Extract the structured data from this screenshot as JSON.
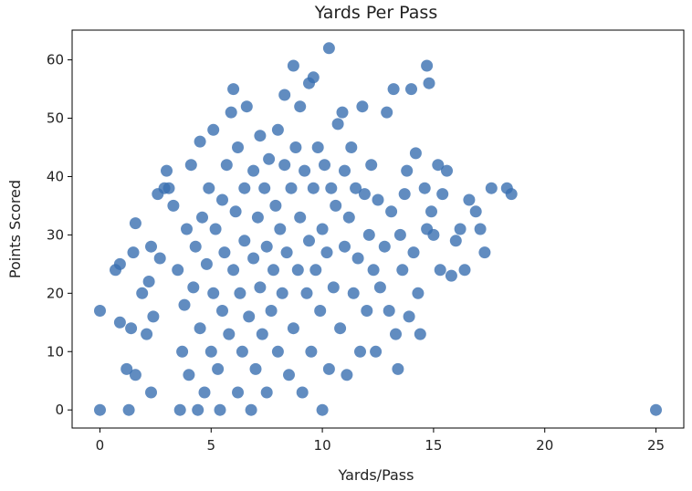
{
  "chart_data": {
    "type": "scatter",
    "title": "Yards Per Pass",
    "xlabel": "Yards/Pass",
    "ylabel": "Points Scored",
    "xlim": [
      -1.25,
      26.25
    ],
    "ylim": [
      -3.1,
      65.1
    ],
    "xticks": [
      0,
      5,
      10,
      15,
      20,
      25
    ],
    "yticks": [
      0,
      10,
      20,
      30,
      40,
      50,
      60
    ],
    "grid": false,
    "marker_color": "#3a6fb0",
    "marker_opacity": 0.8,
    "series": [
      {
        "points": [
          [
            0,
            0
          ],
          [
            0,
            17
          ],
          [
            0.7,
            24
          ],
          [
            0.9,
            25
          ],
          [
            0.9,
            15
          ],
          [
            1.2,
            7
          ],
          [
            1.3,
            0
          ],
          [
            1.4,
            14
          ],
          [
            1.5,
            27
          ],
          [
            1.6,
            32
          ],
          [
            1.6,
            6
          ],
          [
            1.9,
            20
          ],
          [
            2.1,
            13
          ],
          [
            2.2,
            22
          ],
          [
            2.3,
            28
          ],
          [
            2.3,
            3
          ],
          [
            2.4,
            16
          ],
          [
            2.6,
            37
          ],
          [
            2.7,
            26
          ],
          [
            2.9,
            38
          ],
          [
            3.0,
            41
          ],
          [
            3.1,
            38
          ],
          [
            3.3,
            35
          ],
          [
            3.5,
            24
          ],
          [
            3.6,
            0
          ],
          [
            3.7,
            10
          ],
          [
            3.8,
            18
          ],
          [
            3.9,
            31
          ],
          [
            4.0,
            6
          ],
          [
            4.1,
            42
          ],
          [
            4.2,
            21
          ],
          [
            4.3,
            28
          ],
          [
            4.4,
            0
          ],
          [
            4.5,
            46
          ],
          [
            4.5,
            14
          ],
          [
            4.6,
            33
          ],
          [
            4.7,
            3
          ],
          [
            4.8,
            25
          ],
          [
            4.9,
            38
          ],
          [
            5.0,
            10
          ],
          [
            5.1,
            48
          ],
          [
            5.1,
            20
          ],
          [
            5.2,
            31
          ],
          [
            5.3,
            7
          ],
          [
            5.4,
            0
          ],
          [
            5.5,
            36
          ],
          [
            5.5,
            17
          ],
          [
            5.6,
            27
          ],
          [
            5.7,
            42
          ],
          [
            5.8,
            13
          ],
          [
            5.9,
            51
          ],
          [
            6.0,
            55
          ],
          [
            6.0,
            24
          ],
          [
            6.1,
            34
          ],
          [
            6.2,
            3
          ],
          [
            6.2,
            45
          ],
          [
            6.3,
            20
          ],
          [
            6.4,
            10
          ],
          [
            6.5,
            38
          ],
          [
            6.5,
            29
          ],
          [
            6.6,
            52
          ],
          [
            6.7,
            16
          ],
          [
            6.8,
            0
          ],
          [
            6.9,
            41
          ],
          [
            6.9,
            26
          ],
          [
            7.0,
            7
          ],
          [
            7.1,
            33
          ],
          [
            7.2,
            47
          ],
          [
            7.2,
            21
          ],
          [
            7.3,
            13
          ],
          [
            7.4,
            38
          ],
          [
            7.5,
            28
          ],
          [
            7.5,
            3
          ],
          [
            7.6,
            43
          ],
          [
            7.7,
            17
          ],
          [
            7.8,
            24
          ],
          [
            7.9,
            35
          ],
          [
            8.0,
            48
          ],
          [
            8.0,
            10
          ],
          [
            8.1,
            31
          ],
          [
            8.2,
            20
          ],
          [
            8.3,
            54
          ],
          [
            8.3,
            42
          ],
          [
            8.4,
            27
          ],
          [
            8.5,
            6
          ],
          [
            8.6,
            38
          ],
          [
            8.7,
            14
          ],
          [
            8.7,
            59
          ],
          [
            8.8,
            45
          ],
          [
            8.9,
            24
          ],
          [
            9.0,
            52
          ],
          [
            9.0,
            33
          ],
          [
            9.1,
            3
          ],
          [
            9.2,
            41
          ],
          [
            9.3,
            20
          ],
          [
            9.4,
            29
          ],
          [
            9.4,
            56
          ],
          [
            9.5,
            10
          ],
          [
            9.6,
            57
          ],
          [
            9.6,
            38
          ],
          [
            9.7,
            24
          ],
          [
            9.8,
            45
          ],
          [
            9.9,
            17
          ],
          [
            10.0,
            31
          ],
          [
            10.0,
            0
          ],
          [
            10.1,
            42
          ],
          [
            10.2,
            27
          ],
          [
            10.3,
            62
          ],
          [
            10.3,
            7
          ],
          [
            10.4,
            38
          ],
          [
            10.5,
            21
          ],
          [
            10.6,
            35
          ],
          [
            10.7,
            49
          ],
          [
            10.8,
            14
          ],
          [
            10.9,
            51
          ],
          [
            11.0,
            28
          ],
          [
            11.0,
            41
          ],
          [
            11.1,
            6
          ],
          [
            11.2,
            33
          ],
          [
            11.3,
            45
          ],
          [
            11.4,
            20
          ],
          [
            11.5,
            38
          ],
          [
            11.6,
            26
          ],
          [
            11.7,
            10
          ],
          [
            11.8,
            52
          ],
          [
            11.9,
            37
          ],
          [
            12.0,
            17
          ],
          [
            12.1,
            30
          ],
          [
            12.2,
            42
          ],
          [
            12.3,
            24
          ],
          [
            12.4,
            10
          ],
          [
            12.5,
            36
          ],
          [
            12.6,
            21
          ],
          [
            12.8,
            28
          ],
          [
            12.9,
            51
          ],
          [
            13.0,
            17
          ],
          [
            13.1,
            34
          ],
          [
            13.2,
            55
          ],
          [
            13.3,
            13
          ],
          [
            13.4,
            7
          ],
          [
            13.5,
            30
          ],
          [
            13.6,
            24
          ],
          [
            13.7,
            37
          ],
          [
            13.8,
            41
          ],
          [
            13.9,
            16
          ],
          [
            14.0,
            55
          ],
          [
            14.1,
            27
          ],
          [
            14.2,
            44
          ],
          [
            14.3,
            20
          ],
          [
            14.4,
            13
          ],
          [
            14.6,
            38
          ],
          [
            14.7,
            59
          ],
          [
            14.7,
            31
          ],
          [
            14.8,
            56
          ],
          [
            14.9,
            34
          ],
          [
            15.0,
            30
          ],
          [
            15.2,
            42
          ],
          [
            15.3,
            24
          ],
          [
            15.4,
            37
          ],
          [
            15.6,
            41
          ],
          [
            15.8,
            23
          ],
          [
            16.0,
            29
          ],
          [
            16.2,
            31
          ],
          [
            16.4,
            24
          ],
          [
            16.6,
            36
          ],
          [
            16.9,
            34
          ],
          [
            17.1,
            31
          ],
          [
            17.3,
            27
          ],
          [
            17.6,
            38
          ],
          [
            18.3,
            38
          ],
          [
            18.5,
            37
          ],
          [
            25,
            0
          ]
        ]
      }
    ]
  }
}
